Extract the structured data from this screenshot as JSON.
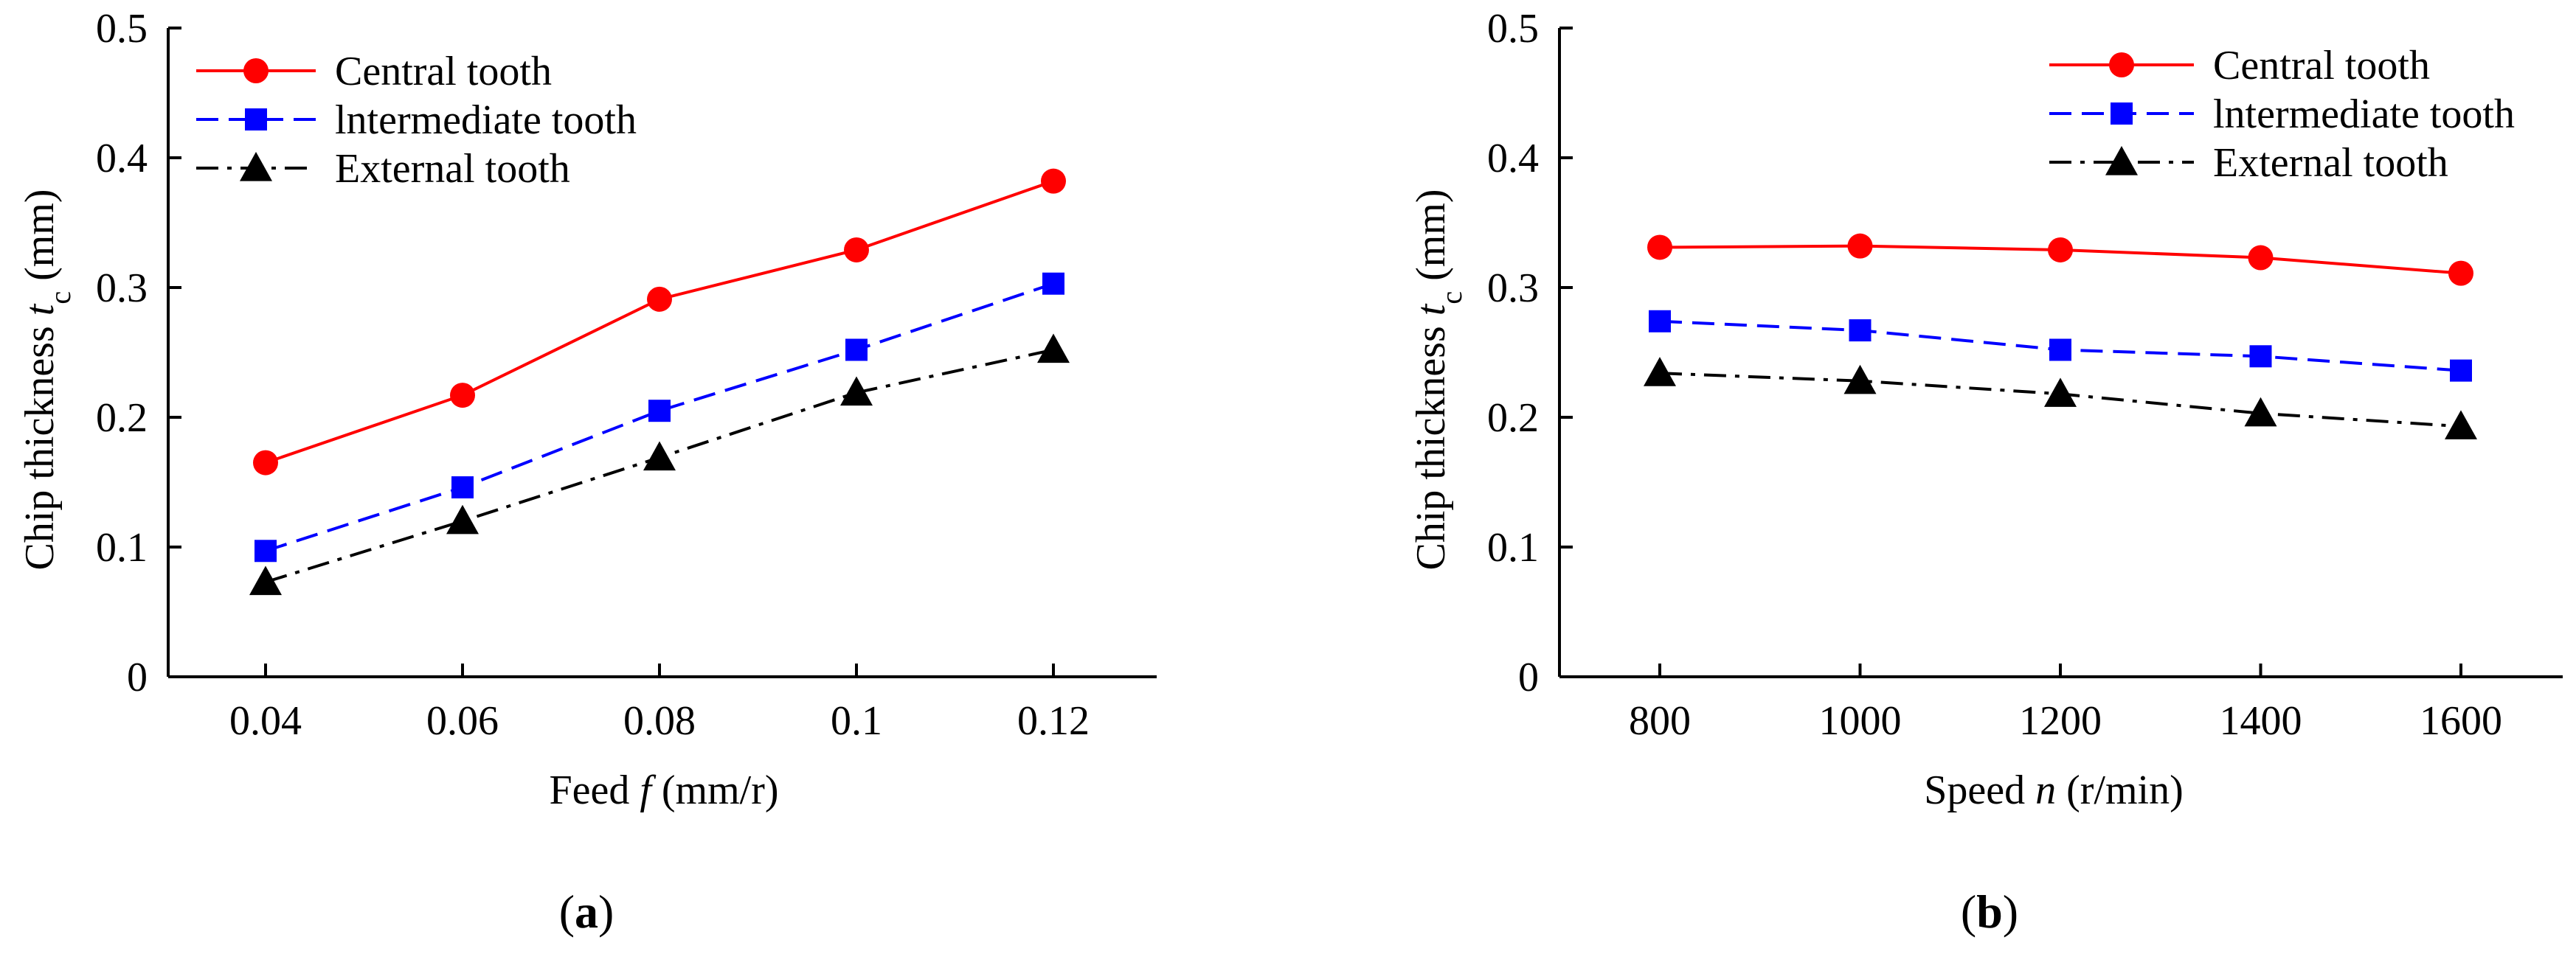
{
  "figure_labels": {
    "a": "a",
    "b": "b"
  },
  "chart_data": [
    {
      "type": "line",
      "panel": "a",
      "xlabel_prefix": "Feed ",
      "xlabel_var": "f",
      "xlabel_unit": " (mm/r)",
      "ylabel_prefix": "Chip thickness ",
      "ylabel_var": "t",
      "ylabel_sub": "c",
      "ylabel_unit": " (mm)",
      "x": [
        "0.04",
        "0.06",
        "0.08",
        "0.1",
        "0.12"
      ],
      "ylim": [
        0,
        0.5
      ],
      "yticks": [
        "0",
        "0.1",
        "0.2",
        "0.3",
        "0.4",
        "0.5"
      ],
      "legend_position": "top-left",
      "series": [
        {
          "name": "Central tooth",
          "color": "#ff0000",
          "marker": "circle",
          "dash": "solid",
          "values": [
            0.165,
            0.217,
            0.291,
            0.329,
            0.382
          ]
        },
        {
          "name": "lntermediate tooth",
          "color": "#0000ff",
          "marker": "square",
          "dash": "dashed",
          "values": [
            0.097,
            0.146,
            0.205,
            0.252,
            0.303
          ]
        },
        {
          "name": "External tooth",
          "color": "#000000",
          "marker": "triangle",
          "dash": "dashdot",
          "values": [
            0.073,
            0.12,
            0.169,
            0.219,
            0.252
          ]
        }
      ]
    },
    {
      "type": "line",
      "panel": "b",
      "xlabel_prefix": "Speed ",
      "xlabel_var": "n",
      "xlabel_unit": " (r/min)",
      "ylabel_prefix": "Chip thickness ",
      "ylabel_var": "t",
      "ylabel_sub": "c",
      "ylabel_unit": " (mm)",
      "x": [
        "800",
        "1000",
        "1200",
        "1400",
        "1600"
      ],
      "ylim": [
        0,
        0.5
      ],
      "yticks": [
        "0",
        "0.1",
        "0.2",
        "0.3",
        "0.4",
        "0.5"
      ],
      "legend_position": "top-right",
      "series": [
        {
          "name": "Central tooth",
          "color": "#ff0000",
          "marker": "circle",
          "dash": "solid",
          "values": [
            0.331,
            0.332,
            0.329,
            0.323,
            0.311
          ]
        },
        {
          "name": "lntermediate tooth",
          "color": "#0000ff",
          "marker": "square",
          "dash": "dashed",
          "values": [
            0.274,
            0.267,
            0.252,
            0.247,
            0.236
          ]
        },
        {
          "name": "External tooth",
          "color": "#000000",
          "marker": "triangle",
          "dash": "dashdot",
          "values": [
            0.234,
            0.228,
            0.218,
            0.203,
            0.193
          ]
        }
      ]
    }
  ]
}
